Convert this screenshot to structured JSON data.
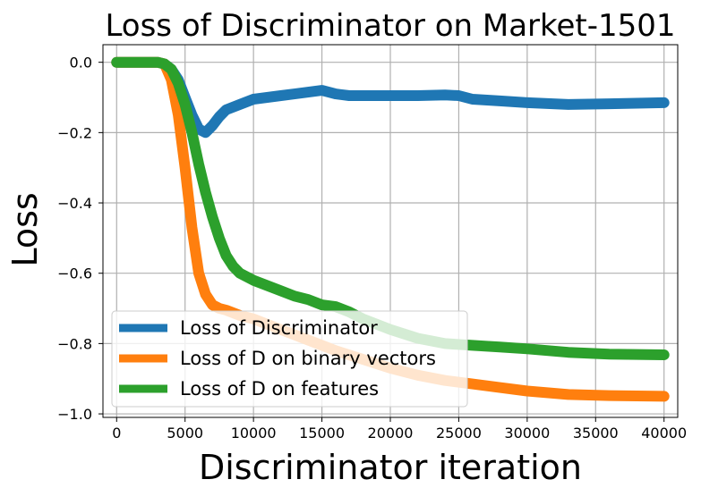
{
  "chart_data": {
    "type": "line",
    "title": "Loss of Discriminator on Market-1501",
    "xlabel": "Discriminator iteration",
    "ylabel": "Loss",
    "xlim": [
      -1000,
      41000
    ],
    "ylim": [
      -1.01,
      0.05
    ],
    "xticks": [
      0,
      5000,
      10000,
      15000,
      20000,
      25000,
      30000,
      35000,
      40000
    ],
    "xtick_labels": [
      "0",
      "5000",
      "10000",
      "15000",
      "20000",
      "25000",
      "30000",
      "35000",
      "40000"
    ],
    "yticks": [
      0.0,
      -0.2,
      -0.4,
      -0.6,
      -0.8,
      -1.0
    ],
    "ytick_labels": [
      "0.0",
      "−0.2",
      "−0.4",
      "−0.6",
      "−0.8",
      "−1.0"
    ],
    "grid": true,
    "legend_position": "lower-left",
    "series": [
      {
        "name": "Loss of Discriminator",
        "color": "#1f77b4",
        "x": [
          0,
          3000,
          3500,
          4000,
          4500,
          5000,
          5500,
          6000,
          6500,
          7000,
          7500,
          8000,
          9000,
          10000,
          11000,
          12000,
          13000,
          14000,
          15000,
          16000,
          17000,
          18000,
          19000,
          20000,
          22000,
          24000,
          25000,
          26000,
          28000,
          30000,
          33000,
          36000,
          40000
        ],
        "y": [
          0.0,
          0.0,
          -0.005,
          -0.02,
          -0.05,
          -0.1,
          -0.15,
          -0.19,
          -0.2,
          -0.18,
          -0.155,
          -0.135,
          -0.12,
          -0.105,
          -0.1,
          -0.095,
          -0.09,
          -0.085,
          -0.08,
          -0.09,
          -0.095,
          -0.095,
          -0.095,
          -0.095,
          -0.095,
          -0.093,
          -0.095,
          -0.105,
          -0.11,
          -0.115,
          -0.12,
          -0.118,
          -0.115
        ]
      },
      {
        "name": "Loss of D on binary vectors",
        "color": "#ff7f0e",
        "x": [
          0,
          3000,
          3500,
          4000,
          4500,
          5000,
          5500,
          6000,
          6500,
          7000,
          7500,
          8000,
          9000,
          10000,
          12000,
          14000,
          16000,
          18000,
          20000,
          22000,
          24000,
          26000,
          28000,
          30000,
          33000,
          36000,
          40000
        ],
        "y": [
          0.0,
          0.0,
          -0.005,
          -0.05,
          -0.15,
          -0.3,
          -0.47,
          -0.6,
          -0.66,
          -0.69,
          -0.7,
          -0.705,
          -0.72,
          -0.73,
          -0.76,
          -0.79,
          -0.82,
          -0.845,
          -0.87,
          -0.89,
          -0.905,
          -0.915,
          -0.925,
          -0.935,
          -0.945,
          -0.948,
          -0.95
        ]
      },
      {
        "name": "Loss of D on features",
        "color": "#2ca02c",
        "x": [
          0,
          3000,
          3500,
          4000,
          4500,
          5000,
          5500,
          6000,
          6500,
          7000,
          7500,
          8000,
          8500,
          9000,
          10000,
          11000,
          12000,
          13000,
          14000,
          15000,
          16000,
          17000,
          18000,
          20000,
          22000,
          24000,
          26000,
          28000,
          30000,
          33000,
          36000,
          40000
        ],
        "y": [
          0.0,
          0.0,
          -0.005,
          -0.02,
          -0.06,
          -0.12,
          -0.2,
          -0.29,
          -0.37,
          -0.44,
          -0.5,
          -0.55,
          -0.58,
          -0.6,
          -0.62,
          -0.635,
          -0.65,
          -0.665,
          -0.675,
          -0.69,
          -0.695,
          -0.71,
          -0.73,
          -0.76,
          -0.785,
          -0.8,
          -0.805,
          -0.81,
          -0.815,
          -0.825,
          -0.83,
          -0.832
        ]
      }
    ]
  }
}
